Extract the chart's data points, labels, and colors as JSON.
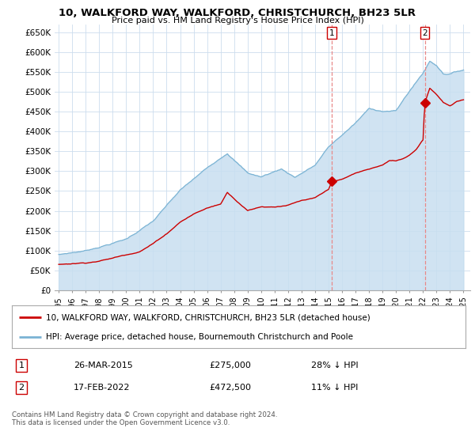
{
  "title": "10, WALKFORD WAY, WALKFORD, CHRISTCHURCH, BH23 5LR",
  "subtitle": "Price paid vs. HM Land Registry's House Price Index (HPI)",
  "ylim": [
    0,
    670000
  ],
  "yticks": [
    0,
    50000,
    100000,
    150000,
    200000,
    250000,
    300000,
    350000,
    400000,
    450000,
    500000,
    550000,
    600000,
    650000
  ],
  "ytick_labels": [
    "£0",
    "£50K",
    "£100K",
    "£150K",
    "£200K",
    "£250K",
    "£300K",
    "£350K",
    "£400K",
    "£450K",
    "£500K",
    "£550K",
    "£600K",
    "£650K"
  ],
  "hpi_color": "#7ab3d4",
  "hpi_fill": "#c8dff0",
  "property_color": "#cc0000",
  "sale1_date": 2015.23,
  "sale1_price": 275000,
  "sale2_date": 2022.13,
  "sale2_price": 472500,
  "legend_property": "10, WALKFORD WAY, WALKFORD, CHRISTCHURCH, BH23 5LR (detached house)",
  "legend_hpi": "HPI: Average price, detached house, Bournemouth Christchurch and Poole",
  "table_row1": [
    "1",
    "26-MAR-2015",
    "£275,000",
    "28% ↓ HPI"
  ],
  "table_row2": [
    "2",
    "17-FEB-2022",
    "£472,500",
    "11% ↓ HPI"
  ],
  "footer": "Contains HM Land Registry data © Crown copyright and database right 2024.\nThis data is licensed under the Open Government Licence v3.0.",
  "background_color": "#ffffff",
  "grid_color": "#ccddee"
}
